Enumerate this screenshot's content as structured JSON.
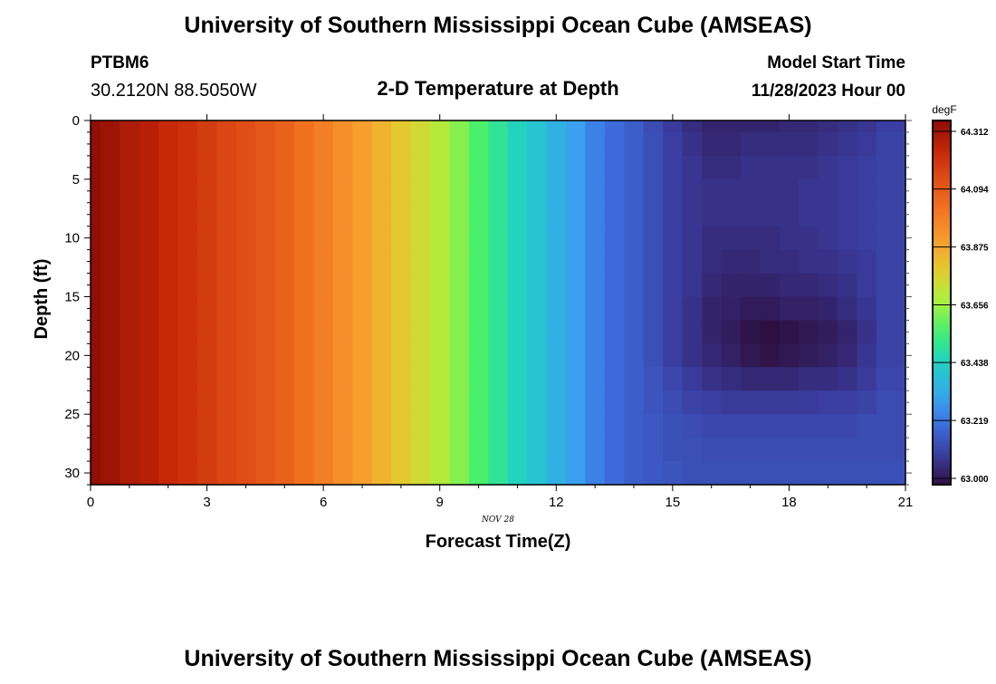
{
  "header": {
    "title": "University of Southern Mississippi Ocean Cube (AMSEAS)",
    "station": "PTBM6",
    "coords": "30.2120N  88.5050W",
    "subtitle": "2-D Temperature at Depth",
    "start_label": "Model Start Time",
    "start_value": "11/28/2023 Hour 00",
    "footer_title": "University of Southern Mississippi Ocean Cube (AMSEAS)"
  },
  "chart_data": {
    "type": "heatmap",
    "title": "2-D Temperature at Depth",
    "xlabel": "Forecast Time(Z)",
    "ylabel": "Depth (ft)",
    "date_label": "NOV 28",
    "xlim": [
      0,
      21
    ],
    "ylim": [
      0,
      31
    ],
    "xticks": [
      "0",
      "3",
      "6",
      "9",
      "12",
      "15",
      "18",
      "21"
    ],
    "yticks": [
      "0",
      "5",
      "10",
      "15",
      "20",
      "25",
      "30"
    ],
    "colorbar": {
      "unit": "degF",
      "range": [
        63.0,
        64.312
      ],
      "ticks": [
        "64.312",
        "64.094",
        "63.875",
        "63.656",
        "63.438",
        "63.219",
        "63.000"
      ]
    },
    "left_profile": [
      64.3,
      64.28,
      64.25,
      64.23,
      64.2,
      64.18,
      64.15,
      64.12,
      64.1,
      64.07,
      64.04,
      64.0,
      63.96,
      63.92,
      63.88,
      63.83,
      63.78,
      63.73,
      63.68,
      63.62,
      63.56,
      63.5,
      63.45,
      63.4,
      63.35,
      63.3,
      63.25,
      63.21,
      63.18
    ],
    "depths": [
      0,
      2,
      4,
      6,
      8,
      10,
      12,
      14,
      16,
      18,
      20,
      22,
      24,
      26,
      28,
      30
    ],
    "right_z": [
      [
        63.14,
        63.1,
        63.07,
        63.05,
        63.05,
        63.05,
        63.05,
        63.06,
        63.06,
        63.07,
        63.08,
        63.09,
        63.11
      ],
      [
        63.15,
        63.11,
        63.08,
        63.06,
        63.06,
        63.07,
        63.07,
        63.07,
        63.07,
        63.08,
        63.09,
        63.1,
        63.12
      ],
      [
        63.15,
        63.11,
        63.09,
        63.07,
        63.07,
        63.08,
        63.08,
        63.08,
        63.08,
        63.09,
        63.1,
        63.11,
        63.12
      ],
      [
        63.15,
        63.11,
        63.09,
        63.08,
        63.08,
        63.08,
        63.08,
        63.08,
        63.09,
        63.09,
        63.1,
        63.11,
        63.12
      ],
      [
        63.15,
        63.11,
        63.09,
        63.08,
        63.08,
        63.08,
        63.08,
        63.08,
        63.09,
        63.09,
        63.1,
        63.11,
        63.12
      ],
      [
        63.15,
        63.11,
        63.09,
        63.07,
        63.07,
        63.07,
        63.07,
        63.08,
        63.08,
        63.09,
        63.1,
        63.11,
        63.12
      ],
      [
        63.15,
        63.11,
        63.09,
        63.07,
        63.06,
        63.06,
        63.07,
        63.07,
        63.08,
        63.08,
        63.09,
        63.1,
        63.12
      ],
      [
        63.15,
        63.11,
        63.09,
        63.06,
        63.05,
        63.05,
        63.05,
        63.06,
        63.06,
        63.07,
        63.08,
        63.1,
        63.12
      ],
      [
        63.15,
        63.11,
        63.08,
        63.05,
        63.04,
        63.03,
        63.03,
        63.04,
        63.04,
        63.05,
        63.07,
        63.09,
        63.12
      ],
      [
        63.15,
        63.11,
        63.08,
        63.05,
        63.03,
        63.01,
        63.0,
        63.01,
        63.02,
        63.03,
        63.05,
        63.08,
        63.12
      ],
      [
        63.15,
        63.11,
        63.08,
        63.06,
        63.04,
        63.02,
        63.01,
        63.02,
        63.03,
        63.04,
        63.06,
        63.09,
        63.12
      ],
      [
        63.16,
        63.13,
        63.1,
        63.08,
        63.07,
        63.06,
        63.06,
        63.06,
        63.07,
        63.07,
        63.08,
        63.1,
        63.13
      ],
      [
        63.16,
        63.14,
        63.12,
        63.11,
        63.1,
        63.1,
        63.1,
        63.1,
        63.1,
        63.11,
        63.11,
        63.12,
        63.14
      ],
      [
        63.17,
        63.15,
        63.14,
        63.13,
        63.13,
        63.13,
        63.13,
        63.13,
        63.13,
        63.13,
        63.13,
        63.14,
        63.14
      ],
      [
        63.17,
        63.15,
        63.15,
        63.14,
        63.14,
        63.14,
        63.14,
        63.14,
        63.14,
        63.14,
        63.14,
        63.14,
        63.14
      ],
      [
        63.17,
        63.16,
        63.15,
        63.15,
        63.15,
        63.15,
        63.15,
        63.15,
        63.15,
        63.15,
        63.15,
        63.15,
        63.15
      ]
    ],
    "time_step_hours": 0.5
  }
}
